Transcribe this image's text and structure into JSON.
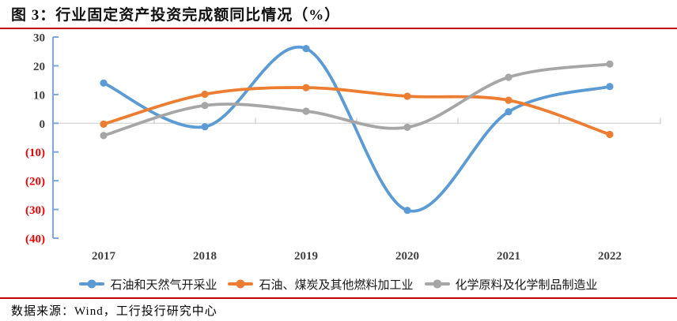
{
  "header": {
    "title": "图 3：行业固定资产投资完成额同比情况（%）"
  },
  "chart_data": {
    "type": "line",
    "smooth": true,
    "title": "行业固定资产投资完成额同比情况（%）",
    "categories": [
      "2017",
      "2018",
      "2019",
      "2020",
      "2021",
      "2022"
    ],
    "series": [
      {
        "name": "石油和天然气开采业",
        "color": "#5B9BD5",
        "values": [
          14.0,
          -1.2,
          26.0,
          -30.3,
          4.0,
          12.8
        ]
      },
      {
        "name": "石油、煤炭及其他燃料加工业",
        "color": "#ED7D31",
        "values": [
          -0.3,
          10.1,
          12.4,
          9.4,
          8.0,
          -3.9
        ]
      },
      {
        "name": "化学原料及化学制品制造业",
        "color": "#A6A6A6",
        "values": [
          -4.3,
          6.2,
          4.2,
          -1.4,
          16.0,
          20.6
        ]
      }
    ],
    "ylim": [
      -40,
      30
    ],
    "yticks": [
      30,
      20,
      10,
      0,
      -10,
      -20,
      -30,
      -40
    ],
    "ytick_labels": [
      "30",
      "20",
      "10",
      "0",
      "(10)",
      "(20)",
      "(30)",
      "(40)"
    ],
    "xlabel": "",
    "ylabel": "",
    "grid": "zero-line-only",
    "legend_position": "bottom"
  },
  "styles": {
    "accent_red": "#C00000",
    "axis_color": "#7EA6DC",
    "zero_line_color": "#D9D9D9",
    "x_tick_color": "#C9C9C9",
    "label_color": "#404040",
    "negative_label_color": "#F50000"
  },
  "footer": {
    "source": "数据来源：Wind，工行投行研究中心"
  }
}
